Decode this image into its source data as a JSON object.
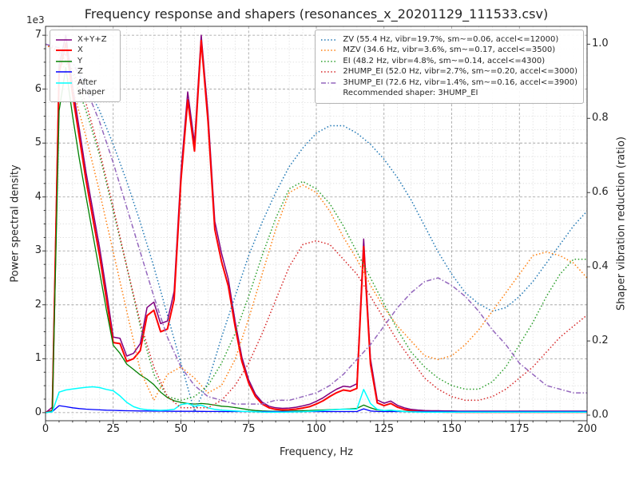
{
  "title": "Frequency response and shapers (resonances_x_20201129_111533.csv)",
  "axes": {
    "x_label": "Frequency, Hz",
    "y_left_label": "Power spectral density",
    "y_right_label": "Shaper vibration reduction (ratio)",
    "y_left_offset": "1e3",
    "x_ticks": [
      "0",
      "25",
      "50",
      "75",
      "100",
      "125",
      "150",
      "175",
      "200"
    ],
    "y_left_ticks": [
      "0",
      "1",
      "2",
      "3",
      "4",
      "5",
      "6",
      "7"
    ],
    "y_right_ticks": [
      "0.0",
      "0.2",
      "0.4",
      "0.6",
      "0.8",
      "1.0"
    ]
  },
  "legend_psd": {
    "entries": [
      {
        "label": "X+Y+Z"
      },
      {
        "label": "X"
      },
      {
        "label": "Y"
      },
      {
        "label": "Z"
      },
      {
        "label": "After shaper"
      }
    ]
  },
  "legend_shapers": {
    "entries": [
      {
        "label": "ZV (55.4 Hz, vibr=19.7%, sm~=0.06, accel<=12000)"
      },
      {
        "label": "MZV (34.6 Hz, vibr=3.6%, sm~=0.17, accel<=3500)"
      },
      {
        "label": "EI (48.2 Hz, vibr=4.8%, sm~=0.14, accel<=4300)"
      },
      {
        "label": "2HUMP_EI (52.0 Hz, vibr=2.7%, sm~=0.20, accel<=3000)"
      },
      {
        "label": "3HUMP_EI (72.6 Hz, vibr=1.4%, sm~=0.16, accel<=3900)"
      }
    ],
    "note": "Recommended shaper: 3HUMP_EI"
  },
  "chart_data": {
    "type": "line",
    "title": "Frequency response and shapers (resonances_x_20201129_111533.csv)",
    "xlabel": "Frequency, Hz",
    "ylabel_left": "Power spectral density (1e3)",
    "ylabel_right": "Shaper vibration reduction (ratio)",
    "annotation": "Recommended shaper: 3HUMP_EI",
    "grid": true,
    "legend_positions": [
      "upper left",
      "upper right"
    ],
    "xlim": [
      0,
      200
    ],
    "ylim_left": [
      -150,
      7165
    ],
    "ylim_right": [
      -0.015,
      1.048
    ],
    "x_ticks": [
      0,
      25,
      50,
      75,
      100,
      125,
      150,
      175,
      200
    ],
    "y_left_ticks": [
      0,
      1000,
      2000,
      3000,
      4000,
      5000,
      6000,
      7000
    ],
    "y_right_ticks": [
      0,
      0.2,
      0.4,
      0.6,
      0.8,
      1.0
    ],
    "psd": {
      "axis": "left",
      "x": [
        0,
        2.5,
        5,
        7.5,
        10,
        12.5,
        15,
        17.5,
        20,
        22.5,
        25,
        27.5,
        30,
        32.5,
        35,
        37.5,
        40,
        42.5,
        45,
        47.5,
        50,
        52.5,
        55,
        57.5,
        60,
        62.5,
        65,
        67.5,
        70,
        72.5,
        75,
        77.5,
        80,
        82.5,
        85,
        87.5,
        90,
        92.5,
        95,
        97.5,
        100,
        102.5,
        105,
        107.5,
        110,
        112.5,
        115,
        117.5,
        120,
        122.5,
        125,
        127.5,
        130,
        132.5,
        135,
        137.5,
        140,
        142.5,
        145,
        147.5,
        150,
        152.5,
        155,
        157.5,
        160,
        162.5,
        165,
        167.5,
        170,
        172.5,
        175,
        177.5,
        180,
        182.5,
        185,
        187.5,
        190,
        192.5,
        195,
        197.5,
        200
      ],
      "series": [
        {
          "name": "X+Y+Z",
          "color": "#800080",
          "width": 1.5,
          "values": [
            0,
            100,
            6450,
            7000,
            6050,
            5250,
            4450,
            3750,
            3050,
            2250,
            1400,
            1380,
            1050,
            1100,
            1280,
            1950,
            2050,
            1650,
            1700,
            2250,
            4450,
            5950,
            5000,
            7000,
            5550,
            3550,
            2950,
            2480,
            1700,
            1030,
            610,
            345,
            195,
            120,
            90,
            80,
            85,
            100,
            125,
            155,
            210,
            275,
            360,
            435,
            490,
            475,
            535,
            3220,
            1000,
            235,
            175,
            215,
            135,
            90,
            60,
            48,
            40,
            35,
            35,
            32,
            30,
            28,
            28,
            28,
            28,
            28,
            28,
            28,
            28,
            28,
            28,
            28,
            28,
            28,
            28,
            28,
            28,
            28,
            28,
            28,
            28
          ]
        },
        {
          "name": "X",
          "color": "#ff0000",
          "width": 2,
          "values": [
            0,
            40,
            6300,
            6850,
            5900,
            5100,
            4300,
            3600,
            2900,
            2100,
            1300,
            1280,
            950,
            1000,
            1150,
            1800,
            1900,
            1500,
            1550,
            2100,
            4300,
            5800,
            4850,
            6900,
            5400,
            3400,
            2800,
            2350,
            1600,
            950,
            550,
            300,
            160,
            90,
            60,
            50,
            55,
            65,
            85,
            110,
            160,
            220,
            300,
            370,
            420,
            400,
            450,
            3080,
            900,
            180,
            130,
            170,
            100,
            60,
            35,
            25,
            20,
            15,
            15,
            12,
            12,
            10,
            10,
            10,
            10,
            10,
            10,
            10,
            10,
            10,
            10,
            10,
            10,
            10,
            10,
            10,
            10,
            10,
            10,
            10,
            10
          ]
        },
        {
          "name": "Y",
          "color": "#008000",
          "width": 1.3,
          "values": [
            0,
            30,
            5600,
            6400,
            5500,
            4700,
            4000,
            3300,
            2600,
            1900,
            1250,
            1100,
            900,
            800,
            700,
            620,
            520,
            380,
            280,
            220,
            190,
            170,
            160,
            170,
            160,
            140,
            120,
            110,
            95,
            75,
            55,
            40,
            32,
            28,
            25,
            25,
            28,
            32,
            36,
            40,
            45,
            50,
            55,
            60,
            65,
            70,
            80,
            140,
            90,
            50,
            40,
            38,
            32,
            25,
            20,
            18,
            15,
            14,
            13,
            12,
            12,
            12,
            12,
            12,
            12,
            12,
            12,
            12,
            12,
            12,
            12,
            12,
            12,
            12,
            12,
            12,
            12,
            12,
            12,
            12,
            12
          ]
        },
        {
          "name": "Z",
          "color": "#0000ff",
          "width": 1.3,
          "values": [
            0,
            20,
            130,
            110,
            90,
            75,
            65,
            58,
            52,
            46,
            42,
            38,
            35,
            33,
            31,
            30,
            28,
            27,
            26,
            25,
            25,
            24,
            24,
            23,
            22,
            22,
            21,
            21,
            21,
            20,
            20,
            20,
            20,
            20,
            20,
            20,
            20,
            20,
            20,
            20,
            20,
            20,
            20,
            20,
            20,
            20,
            20,
            70,
            30,
            22,
            20,
            20,
            20,
            20,
            20,
            20,
            20,
            20,
            20,
            20,
            20,
            20,
            20,
            20,
            20,
            20,
            20,
            20,
            20,
            20,
            20,
            20,
            20,
            20,
            20,
            20,
            20,
            20,
            20,
            20,
            20
          ]
        },
        {
          "name": "After shaper",
          "color": "#00ffff",
          "width": 1.5,
          "values": [
            0,
            15,
            380,
            420,
            440,
            455,
            470,
            480,
            465,
            430,
            405,
            310,
            190,
            110,
            70,
            55,
            48,
            42,
            48,
            60,
            150,
            170,
            120,
            140,
            90,
            60,
            45,
            38,
            30,
            25,
            20,
            16,
            12,
            10,
            10,
            10,
            12,
            14,
            18,
            24,
            32,
            40,
            50,
            58,
            64,
            60,
            66,
            430,
            170,
            60,
            40,
            45,
            30,
            20,
            15,
            12,
            10,
            10,
            9,
            9,
            8,
            8,
            8,
            8,
            8,
            8,
            8,
            8,
            8,
            8,
            8,
            8,
            8,
            8,
            8,
            8,
            8,
            8,
            8,
            8,
            8
          ]
        }
      ]
    },
    "shapers": {
      "axis": "right",
      "x": [
        0,
        5,
        10,
        15,
        20,
        25,
        30,
        35,
        40,
        45,
        50,
        55,
        60,
        65,
        70,
        75,
        80,
        85,
        90,
        95,
        100,
        105,
        110,
        115,
        120,
        125,
        130,
        135,
        140,
        145,
        150,
        155,
        160,
        165,
        170,
        175,
        180,
        185,
        190,
        195,
        200
      ],
      "series": [
        {
          "name": "ZV",
          "freq_hz": 55.4,
          "vibr_pct": 19.7,
          "sm": 0.06,
          "max_accel": 12000,
          "color": "#1f77b4",
          "width": 1.5,
          "dash": "1.5,2.6",
          "values": [
            1.0,
            0.99,
            0.95,
            0.89,
            0.82,
            0.73,
            0.63,
            0.52,
            0.4,
            0.27,
            0.14,
            0.01,
            0.09,
            0.21,
            0.32,
            0.43,
            0.52,
            0.6,
            0.67,
            0.72,
            0.76,
            0.78,
            0.78,
            0.76,
            0.73,
            0.69,
            0.64,
            0.58,
            0.51,
            0.44,
            0.38,
            0.33,
            0.3,
            0.28,
            0.29,
            0.32,
            0.36,
            0.41,
            0.46,
            0.51,
            0.55
          ]
        },
        {
          "name": "MZV",
          "freq_hz": 34.6,
          "vibr_pct": 3.6,
          "sm": 0.17,
          "max_accel": 3500,
          "color": "#ff7f0e",
          "width": 1.5,
          "dash": "1.5,2.6",
          "values": [
            1.0,
            0.97,
            0.88,
            0.75,
            0.6,
            0.44,
            0.28,
            0.12,
            0.04,
            0.11,
            0.13,
            0.1,
            0.06,
            0.08,
            0.15,
            0.26,
            0.38,
            0.5,
            0.6,
            0.62,
            0.6,
            0.55,
            0.48,
            0.42,
            0.35,
            0.29,
            0.24,
            0.2,
            0.16,
            0.15,
            0.16,
            0.19,
            0.23,
            0.28,
            0.33,
            0.38,
            0.43,
            0.44,
            0.43,
            0.41,
            0.37
          ]
        },
        {
          "name": "EI",
          "freq_hz": 48.2,
          "vibr_pct": 4.8,
          "sm": 0.14,
          "max_accel": 4300,
          "color": "#2ca02c",
          "width": 1.5,
          "dash": "1.5,2.6",
          "values": [
            1.0,
            0.98,
            0.92,
            0.82,
            0.7,
            0.55,
            0.4,
            0.24,
            0.11,
            0.05,
            0.04,
            0.05,
            0.08,
            0.14,
            0.22,
            0.32,
            0.43,
            0.53,
            0.61,
            0.63,
            0.61,
            0.57,
            0.51,
            0.44,
            0.37,
            0.3,
            0.23,
            0.17,
            0.13,
            0.1,
            0.08,
            0.07,
            0.07,
            0.09,
            0.13,
            0.19,
            0.25,
            0.32,
            0.38,
            0.42,
            0.42
          ]
        },
        {
          "name": "2HUMP_EI",
          "freq_hz": 52.0,
          "vibr_pct": 2.7,
          "sm": 0.2,
          "max_accel": 3000,
          "color": "#d62728",
          "width": 1.5,
          "dash": "1.5,2.6",
          "values": [
            1.0,
            0.98,
            0.93,
            0.84,
            0.71,
            0.56,
            0.4,
            0.25,
            0.13,
            0.05,
            0.02,
            0.02,
            0.02,
            0.04,
            0.08,
            0.14,
            0.22,
            0.31,
            0.4,
            0.46,
            0.47,
            0.46,
            0.42,
            0.38,
            0.32,
            0.26,
            0.2,
            0.15,
            0.1,
            0.07,
            0.05,
            0.04,
            0.04,
            0.05,
            0.07,
            0.1,
            0.13,
            0.17,
            0.21,
            0.24,
            0.27
          ]
        },
        {
          "name": "3HUMP_EI",
          "freq_hz": 72.6,
          "vibr_pct": 1.4,
          "sm": 0.16,
          "max_accel": 3900,
          "color": "#9467bd",
          "width": 1.5,
          "dash": "6,2.4,1.5,2.4",
          "values": [
            1.0,
            0.99,
            0.95,
            0.88,
            0.79,
            0.68,
            0.56,
            0.44,
            0.32,
            0.21,
            0.13,
            0.08,
            0.05,
            0.04,
            0.03,
            0.03,
            0.03,
            0.04,
            0.04,
            0.05,
            0.06,
            0.08,
            0.11,
            0.15,
            0.19,
            0.24,
            0.29,
            0.33,
            0.36,
            0.37,
            0.35,
            0.32,
            0.28,
            0.23,
            0.19,
            0.14,
            0.11,
            0.08,
            0.07,
            0.06,
            0.06
          ]
        }
      ]
    }
  }
}
